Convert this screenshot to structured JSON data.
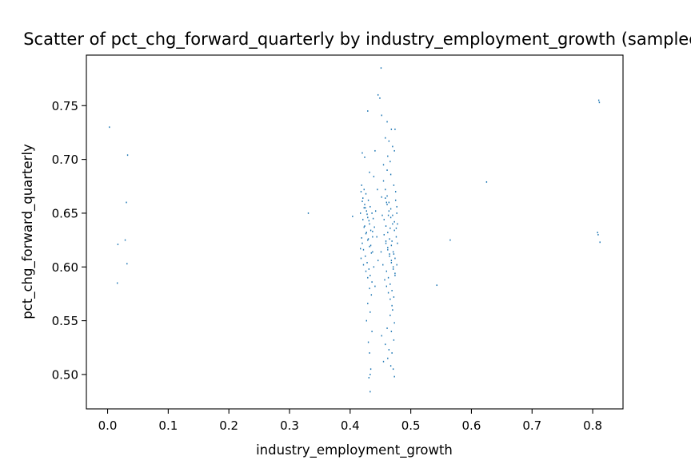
{
  "chart_data": {
    "type": "scatter",
    "title": "Scatter of pct_chg_forward_quarterly by industry_employment_growth (sampled)",
    "xlabel": "industry_employment_growth",
    "ylabel": "pct_chg_forward_quarterly",
    "xlim": [
      -0.035,
      0.85
    ],
    "ylim": [
      0.468,
      0.797
    ],
    "xticks": [
      "0.0",
      "0.1",
      "0.2",
      "0.3",
      "0.4",
      "0.5",
      "0.6",
      "0.7",
      "0.8"
    ],
    "xtick_values": [
      0.0,
      0.1,
      0.2,
      0.3,
      0.4,
      0.5,
      0.6,
      0.7,
      0.8
    ],
    "yticks": [
      "0.50",
      "0.55",
      "0.60",
      "0.65",
      "0.70",
      "0.75"
    ],
    "ytick_values": [
      0.5,
      0.55,
      0.6,
      0.65,
      0.7,
      0.75
    ],
    "grid": false,
    "marker_color": "#1f77b4",
    "points": [
      [
        0.003,
        0.73
      ],
      [
        0.033,
        0.704
      ],
      [
        0.031,
        0.66
      ],
      [
        0.029,
        0.625
      ],
      [
        0.017,
        0.621
      ],
      [
        0.032,
        0.603
      ],
      [
        0.016,
        0.585
      ],
      [
        0.331,
        0.65
      ],
      [
        0.404,
        0.647
      ],
      [
        0.543,
        0.583
      ],
      [
        0.565,
        0.625
      ],
      [
        0.625,
        0.679
      ],
      [
        0.81,
        0.755
      ],
      [
        0.811,
        0.753
      ],
      [
        0.808,
        0.632
      ],
      [
        0.809,
        0.63
      ],
      [
        0.812,
        0.623
      ],
      [
        0.451,
        0.785
      ],
      [
        0.446,
        0.76
      ],
      [
        0.449,
        0.757
      ],
      [
        0.452,
        0.741
      ],
      [
        0.429,
        0.745
      ],
      [
        0.461,
        0.735
      ],
      [
        0.468,
        0.728
      ],
      [
        0.474,
        0.728
      ],
      [
        0.458,
        0.72
      ],
      [
        0.464,
        0.717
      ],
      [
        0.47,
        0.712
      ],
      [
        0.473,
        0.708
      ],
      [
        0.42,
        0.706
      ],
      [
        0.441,
        0.708
      ],
      [
        0.424,
        0.702
      ],
      [
        0.462,
        0.703
      ],
      [
        0.466,
        0.698
      ],
      [
        0.455,
        0.695
      ],
      [
        0.461,
        0.69
      ],
      [
        0.432,
        0.688
      ],
      [
        0.439,
        0.684
      ],
      [
        0.467,
        0.686
      ],
      [
        0.418,
        0.67
      ],
      [
        0.421,
        0.664
      ],
      [
        0.424,
        0.658
      ],
      [
        0.427,
        0.652
      ],
      [
        0.429,
        0.646
      ],
      [
        0.432,
        0.64
      ],
      [
        0.434,
        0.634
      ],
      [
        0.437,
        0.628
      ],
      [
        0.42,
        0.622
      ],
      [
        0.422,
        0.616
      ],
      [
        0.425,
        0.61
      ],
      [
        0.428,
        0.604
      ],
      [
        0.431,
        0.598
      ],
      [
        0.433,
        0.592
      ],
      [
        0.436,
        0.586
      ],
      [
        0.419,
        0.676
      ],
      [
        0.423,
        0.672
      ],
      [
        0.426,
        0.668
      ],
      [
        0.43,
        0.662
      ],
      [
        0.433,
        0.656
      ],
      [
        0.436,
        0.65
      ],
      [
        0.421,
        0.644
      ],
      [
        0.424,
        0.638
      ],
      [
        0.427,
        0.632
      ],
      [
        0.43,
        0.626
      ],
      [
        0.434,
        0.62
      ],
      [
        0.437,
        0.614
      ],
      [
        0.418,
        0.608
      ],
      [
        0.422,
        0.602
      ],
      [
        0.426,
        0.596
      ],
      [
        0.429,
        0.59
      ],
      [
        0.432,
        0.58
      ],
      [
        0.435,
        0.574
      ],
      [
        0.429,
        0.566
      ],
      [
        0.433,
        0.558
      ],
      [
        0.427,
        0.55
      ],
      [
        0.436,
        0.54
      ],
      [
        0.43,
        0.53
      ],
      [
        0.432,
        0.52
      ],
      [
        0.434,
        0.505
      ],
      [
        0.433,
        0.5
      ],
      [
        0.431,
        0.497
      ],
      [
        0.425,
        0.655
      ],
      [
        0.428,
        0.649
      ],
      [
        0.431,
        0.643
      ],
      [
        0.423,
        0.637
      ],
      [
        0.426,
        0.631
      ],
      [
        0.429,
        0.625
      ],
      [
        0.432,
        0.619
      ],
      [
        0.435,
        0.613
      ],
      [
        0.42,
        0.661
      ],
      [
        0.423,
        0.655
      ],
      [
        0.438,
        0.645
      ],
      [
        0.437,
        0.633
      ],
      [
        0.419,
        0.627
      ],
      [
        0.455,
        0.68
      ],
      [
        0.458,
        0.672
      ],
      [
        0.461,
        0.666
      ],
      [
        0.464,
        0.66
      ],
      [
        0.467,
        0.654
      ],
      [
        0.47,
        0.648
      ],
      [
        0.473,
        0.642
      ],
      [
        0.476,
        0.636
      ],
      [
        0.456,
        0.63
      ],
      [
        0.459,
        0.624
      ],
      [
        0.462,
        0.618
      ],
      [
        0.465,
        0.612
      ],
      [
        0.468,
        0.606
      ],
      [
        0.471,
        0.6
      ],
      [
        0.474,
        0.594
      ],
      [
        0.457,
        0.588
      ],
      [
        0.46,
        0.582
      ],
      [
        0.463,
        0.576
      ],
      [
        0.466,
        0.57
      ],
      [
        0.469,
        0.564
      ],
      [
        0.472,
        0.676
      ],
      [
        0.475,
        0.67
      ],
      [
        0.458,
        0.664
      ],
      [
        0.461,
        0.658
      ],
      [
        0.464,
        0.652
      ],
      [
        0.467,
        0.646
      ],
      [
        0.47,
        0.64
      ],
      [
        0.473,
        0.634
      ],
      [
        0.476,
        0.628
      ],
      [
        0.459,
        0.622
      ],
      [
        0.462,
        0.616
      ],
      [
        0.465,
        0.61
      ],
      [
        0.468,
        0.604
      ],
      [
        0.471,
        0.598
      ],
      [
        0.474,
        0.592
      ],
      [
        0.46,
        0.66
      ],
      [
        0.463,
        0.648
      ],
      [
        0.466,
        0.636
      ],
      [
        0.469,
        0.624
      ],
      [
        0.472,
        0.612
      ],
      [
        0.475,
        0.662
      ],
      [
        0.477,
        0.65
      ],
      [
        0.456,
        0.644
      ],
      [
        0.459,
        0.638
      ],
      [
        0.462,
        0.632
      ],
      [
        0.465,
        0.626
      ],
      [
        0.468,
        0.62
      ],
      [
        0.471,
        0.614
      ],
      [
        0.474,
        0.608
      ],
      [
        0.477,
        0.602
      ],
      [
        0.46,
        0.596
      ],
      [
        0.463,
        0.59
      ],
      [
        0.466,
        0.584
      ],
      [
        0.469,
        0.578
      ],
      [
        0.472,
        0.572
      ],
      [
        0.47,
        0.56
      ],
      [
        0.466,
        0.555
      ],
      [
        0.473,
        0.548
      ],
      [
        0.461,
        0.543
      ],
      [
        0.468,
        0.54
      ],
      [
        0.472,
        0.532
      ],
      [
        0.458,
        0.528
      ],
      [
        0.464,
        0.523
      ],
      [
        0.469,
        0.52
      ],
      [
        0.462,
        0.515
      ],
      [
        0.467,
        0.508
      ],
      [
        0.471,
        0.505
      ],
      [
        0.473,
        0.498
      ],
      [
        0.452,
        0.536
      ],
      [
        0.455,
        0.512
      ],
      [
        0.454,
        0.602
      ],
      [
        0.451,
        0.614
      ],
      [
        0.453,
        0.648
      ],
      [
        0.452,
        0.665
      ],
      [
        0.478,
        0.64
      ],
      [
        0.477,
        0.656
      ],
      [
        0.478,
        0.622
      ],
      [
        0.444,
        0.628
      ],
      [
        0.446,
        0.606
      ],
      [
        0.442,
        0.652
      ],
      [
        0.44,
        0.637
      ],
      [
        0.445,
        0.672
      ],
      [
        0.417,
        0.65
      ],
      [
        0.417,
        0.617
      ],
      [
        0.439,
        0.6
      ],
      [
        0.441,
        0.582
      ],
      [
        0.433,
        0.484
      ]
    ]
  }
}
